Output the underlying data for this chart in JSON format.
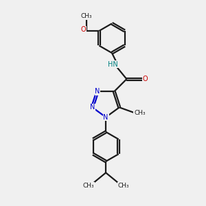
{
  "bg_color": "#f0f0f0",
  "bond_color": "#1a1a1a",
  "N_color": "#0000cc",
  "O_color": "#cc0000",
  "NH_color": "#008080",
  "line_width": 1.6,
  "dbo": 0.018,
  "xlim": [
    -1.2,
    1.2
  ],
  "ylim": [
    -1.6,
    2.0
  ]
}
